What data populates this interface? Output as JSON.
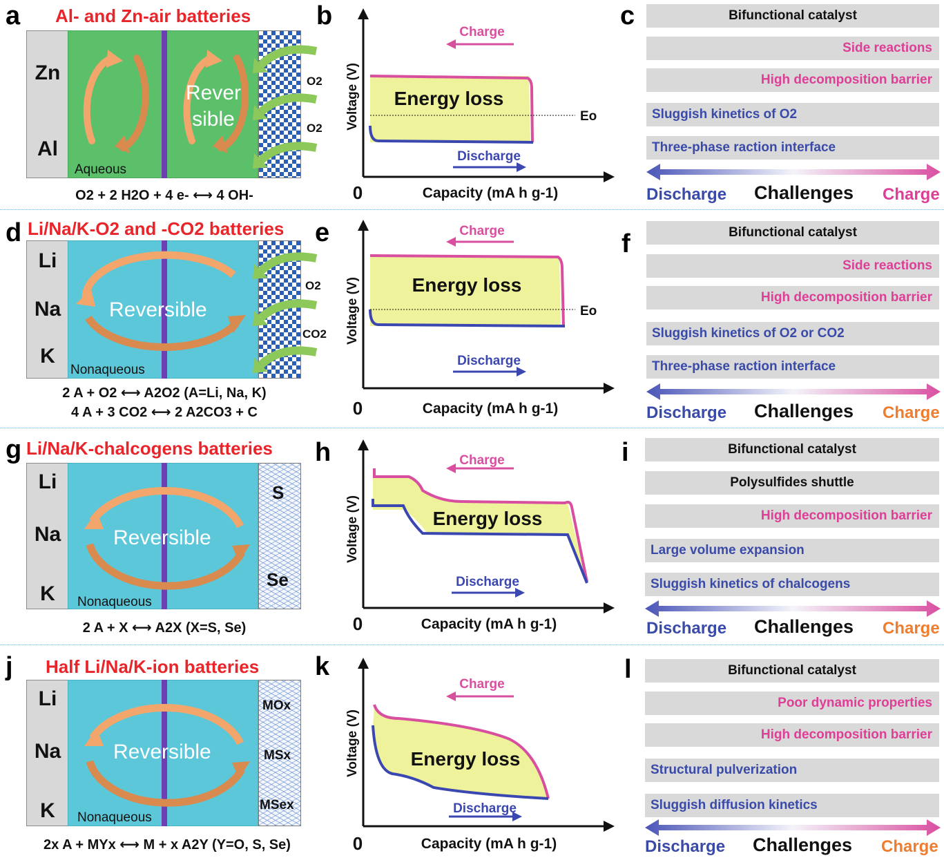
{
  "rows": [
    {
      "letters": [
        "a",
        "b",
        "c"
      ],
      "title": "Al- and Zn-air batteries",
      "anodes": [
        "Zn",
        "Al"
      ],
      "electrolyte": "Aqueous",
      "reversible_text": [
        "Rever",
        "sible"
      ],
      "cathode_type": "air",
      "cathode_labels": [
        "O2",
        "O2"
      ],
      "equations": [
        "O2 + 2 H2O + 4 e- ⟷ 4 OH-"
      ],
      "chart": {
        "ylabel": "Voltage (V)",
        "xlabel": "Capacity (mA h g-1)",
        "origin": "0",
        "charge": "Charge",
        "discharge": "Discharge",
        "energy_loss": "Energy loss",
        "eq_label": "Eo"
      },
      "challenges": [
        {
          "text": "Bifunctional catalyst",
          "tone": "black"
        },
        {
          "text": "Side reactions",
          "tone": "pink"
        },
        {
          "text": "High decomposition barrier",
          "tone": "pink"
        },
        {
          "text": "Sluggish kinetics of O2",
          "tone": "blue"
        },
        {
          "text": "Three-phase raction interface",
          "tone": "blue"
        }
      ],
      "axis": {
        "left": "Discharge",
        "center": "Challenges",
        "right": "Charge"
      }
    },
    {
      "letters": [
        "d",
        "e",
        "f"
      ],
      "title": "Li/Na/K-O2 and -CO2 batteries",
      "anodes": [
        "Li",
        "Na",
        "K"
      ],
      "electrolyte": "Nonaqueous",
      "reversible_text": [
        "Reversible"
      ],
      "cathode_type": "air",
      "cathode_labels": [
        "O2",
        "CO2"
      ],
      "equations": [
        "2 A + O2 ⟷ A2O2 (A=Li, Na, K)",
        "4 A + 3 CO2 ⟷ 2 A2CO3 + C"
      ],
      "chart": {
        "ylabel": "Voltage (V)",
        "xlabel": "Capacity (mA h g-1)",
        "origin": "0",
        "charge": "Charge",
        "discharge": "Discharge",
        "energy_loss": "Energy loss",
        "eq_label": "Eo"
      },
      "challenges": [
        {
          "text": "Bifunctional catalyst",
          "tone": "black"
        },
        {
          "text": "Side reactions",
          "tone": "pink"
        },
        {
          "text": "High decomposition barrier",
          "tone": "pink"
        },
        {
          "text": "Sluggish kinetics of O2 or CO2",
          "tone": "blue"
        },
        {
          "text": "Three-phase raction interface",
          "tone": "blue"
        }
      ],
      "axis": {
        "left": "Discharge",
        "center": "Challenges",
        "right": "Charge"
      }
    },
    {
      "letters": [
        "g",
        "h",
        "i"
      ],
      "title": "Li/Na/K-chalcogens batteries",
      "anodes": [
        "Li",
        "Na",
        "K"
      ],
      "electrolyte": "Nonaqueous",
      "reversible_text": [
        "Reversible"
      ],
      "cathode_type": "wave",
      "cathode_labels": [
        "S",
        "Se"
      ],
      "equations": [
        "2 A + X ⟷ A2X (X=S, Se)"
      ],
      "chart": {
        "ylabel": "Voltage (V)",
        "xlabel": "Capacity (mA h g-1)",
        "origin": "0",
        "charge": "Charge",
        "discharge": "Discharge",
        "energy_loss": "Energy loss"
      },
      "challenges": [
        {
          "text": "Bifunctional catalyst",
          "tone": "black"
        },
        {
          "text": "Polysulfides shuttle",
          "tone": "black"
        },
        {
          "text": "High decomposition barrier",
          "tone": "pink"
        },
        {
          "text": "Large volume expansion",
          "tone": "blue"
        },
        {
          "text": "Sluggish kinetics of chalcogens",
          "tone": "blue"
        }
      ],
      "axis": {
        "left": "Discharge",
        "center": "Challenges",
        "right": "Charge"
      }
    },
    {
      "letters": [
        "j",
        "k",
        "l"
      ],
      "title": "Half Li/Na/K-ion batteries",
      "anodes": [
        "Li",
        "Na",
        "K"
      ],
      "electrolyte": "Nonaqueous",
      "reversible_text": [
        "Reversible"
      ],
      "cathode_type": "wave",
      "cathode_labels": [
        "MOx",
        "MSx",
        "MSex"
      ],
      "equations": [
        "2x A + MYx ⟷ M + x A2Y (Y=O, S, Se)"
      ],
      "chart": {
        "ylabel": "Voltage (V)",
        "xlabel": "Capacity (mA h g-1)",
        "origin": "0",
        "charge": "Charge",
        "discharge": "Discharge",
        "energy_loss": "Energy loss"
      },
      "challenges": [
        {
          "text": "Bifunctional catalyst",
          "tone": "black"
        },
        {
          "text": "Poor dynamic properties",
          "tone": "pink"
        },
        {
          "text": "High decomposition barrier",
          "tone": "pink"
        },
        {
          "text": "Structural pulverization",
          "tone": "blue"
        },
        {
          "text": "Sluggish diffusion kinetics",
          "tone": "blue"
        }
      ],
      "axis": {
        "left": "Discharge",
        "center": "Challenges",
        "right": "Charge"
      }
    }
  ],
  "colors": {
    "title_red": "#e8252a",
    "charge_pink": "#d94fa0",
    "discharge_blue": "#3b47b0",
    "energy_fill": "#eef29a",
    "aqueous_green": "#5cbf6a",
    "nonaqueous_cyan": "#5cc7d8",
    "separator_purple": "#6e3fb2",
    "bar_gray": "#d9d9d9",
    "arrow_orange": "#f3a66b",
    "gas_arrow_green": "#8cc85a",
    "right_charge_orange": "#ef7d2f"
  }
}
